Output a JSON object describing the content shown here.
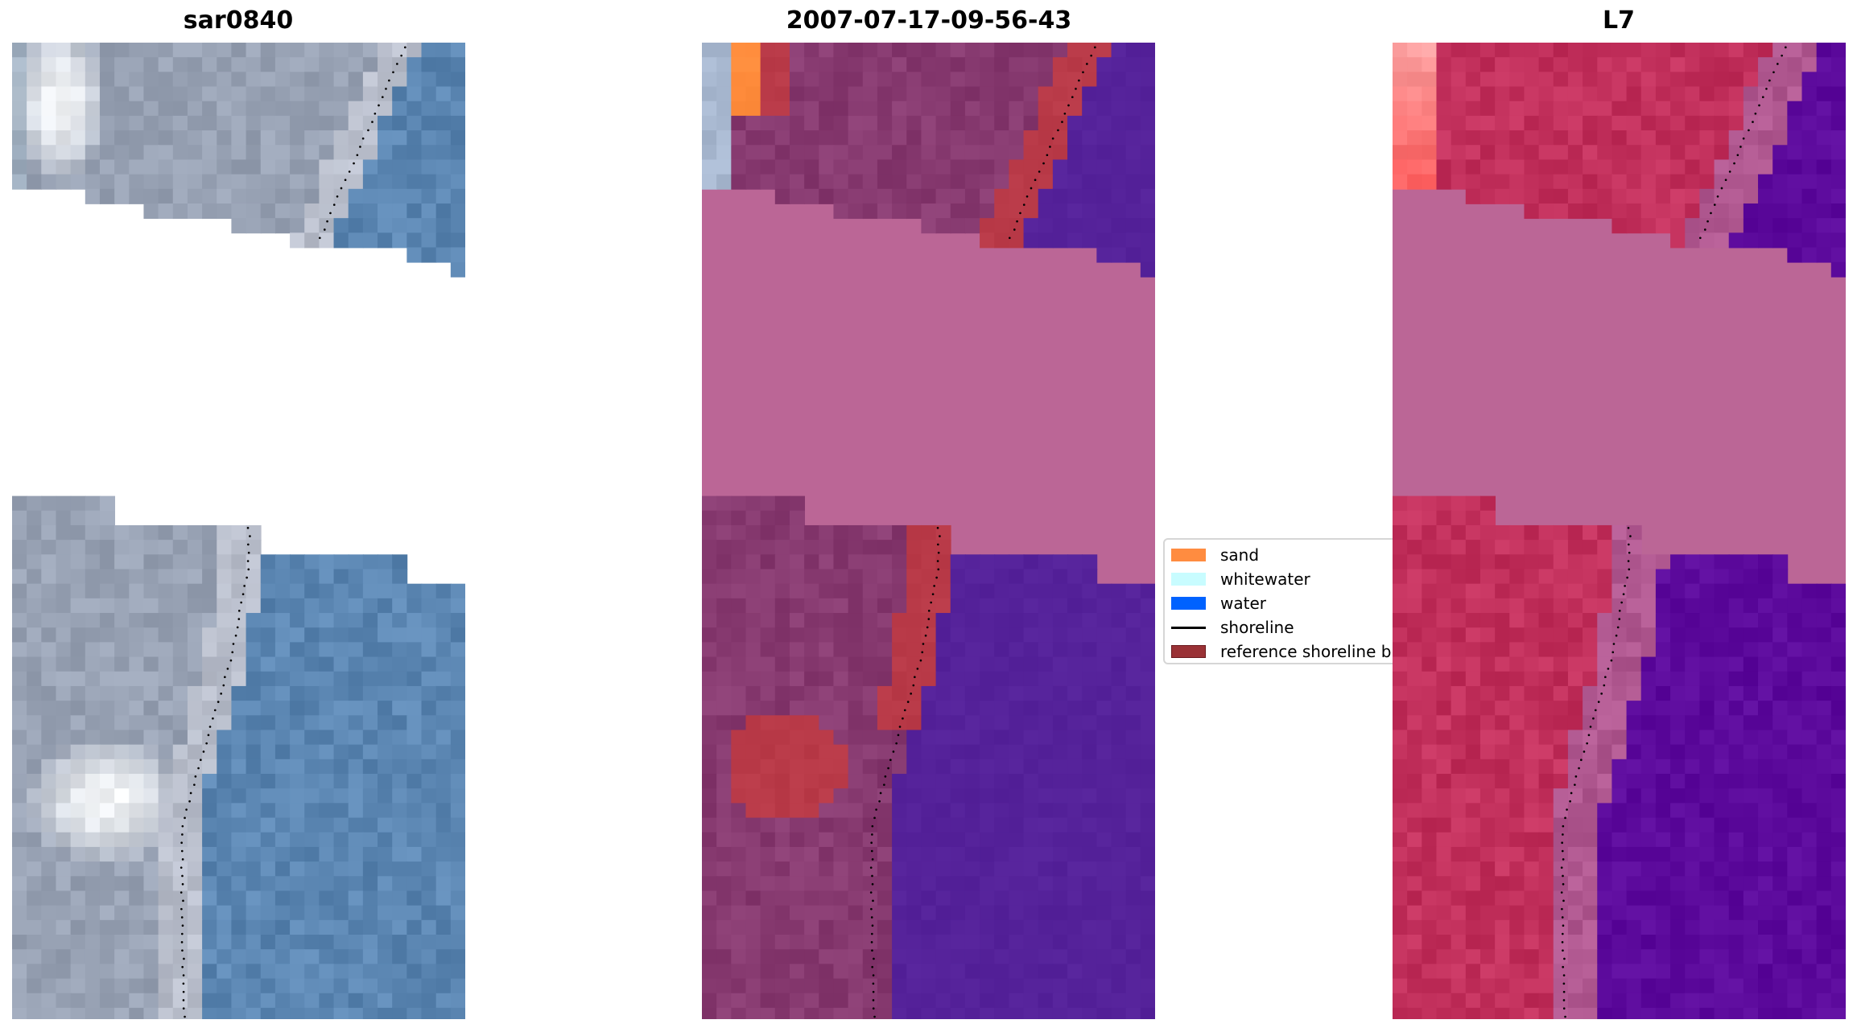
{
  "panels": [
    {
      "title": "sar0840",
      "kind": "rgb"
    },
    {
      "title": "2007-07-17-09-56-43",
      "kind": "classified"
    },
    {
      "title": "L7",
      "kind": "falsecolor"
    }
  ],
  "legend": {
    "items": [
      {
        "label": "sand",
        "color": "#ff8c40",
        "type": "patch"
      },
      {
        "label": "whitewater",
        "color": "#c8fcff",
        "type": "patch"
      },
      {
        "label": "water",
        "color": "#0062ff",
        "type": "patch"
      },
      {
        "label": "shoreline",
        "color": "#000000",
        "type": "line"
      },
      {
        "label": "reference shoreline buffer",
        "color": "#9a3236",
        "type": "patch"
      }
    ]
  },
  "colors": {
    "nodata_classified": "#bb6696",
    "shoreline_points": "#000000"
  }
}
